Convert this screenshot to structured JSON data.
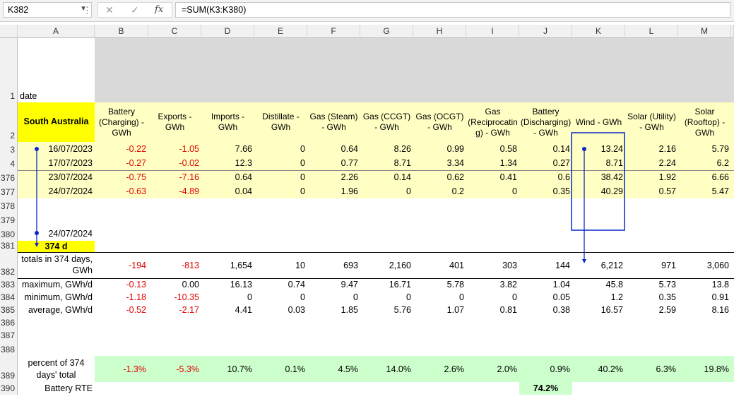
{
  "formula_bar": {
    "name_box": "K382",
    "formula": "=SUM(K3:K380)",
    "cancel_icon": "✕",
    "enter_icon": "✓",
    "fx_label": "fx"
  },
  "columns": [
    "A",
    "B",
    "C",
    "D",
    "E",
    "F",
    "G",
    "H",
    "I",
    "J",
    "K",
    "L",
    "M"
  ],
  "row_numbers": {
    "r1": "1",
    "r2": "2",
    "r3": "3",
    "r4": "4",
    "r376": "376",
    "r377": "377",
    "r378": "378",
    "r379": "379",
    "r380": "380",
    "r381": "381",
    "r382": "382",
    "r383": "383",
    "r384": "384",
    "r385": "385",
    "r386": "386",
    "r387": "387",
    "r388": "388",
    "r389": "389",
    "r390": "390"
  },
  "row1": {
    "a": "date"
  },
  "row2": {
    "a": "South Australia",
    "headers": [
      "Battery (Charging) - GWh",
      "Exports - GWh",
      "Imports - GWh",
      "Distillate - GWh",
      "Gas (Steam) - GWh",
      "Gas (CCGT) - GWh",
      "Gas (OCGT) - GWh",
      "Gas (Reciprocatin g) - GWh",
      "Battery (Discharging) - GWh",
      "Wind - GWh",
      "Solar (Utility) - GWh",
      "Solar (Rooftop) - GWh"
    ]
  },
  "data_rows": [
    {
      "date": "16/07/2023",
      "v": [
        "-0.22",
        "-1.05",
        "7.66",
        "0",
        "0.64",
        "8.26",
        "0.99",
        "0.58",
        "0.14",
        "13.24",
        "2.16",
        "5.79"
      ]
    },
    {
      "date": "17/07/2023",
      "v": [
        "-0.27",
        "-0.02",
        "12.3",
        "0",
        "0.77",
        "8.71",
        "3.34",
        "1.34",
        "0.27",
        "8.71",
        "2.24",
        "6.2"
      ]
    },
    {
      "date": "23/07/2024",
      "v": [
        "-0.75",
        "-7.16",
        "0.64",
        "0",
        "2.26",
        "0.14",
        "0.62",
        "0.41",
        "0.6",
        "38.42",
        "1.92",
        "6.66"
      ]
    },
    {
      "date": "24/07/2024",
      "v": [
        "-0.63",
        "-4.89",
        "0.04",
        "0",
        "1.96",
        "0",
        "0.2",
        "0",
        "0.35",
        "40.29",
        "0.57",
        "5.47"
      ]
    }
  ],
  "row380": {
    "a": "24/07/2024"
  },
  "row381": {
    "a": "374 d"
  },
  "totals": {
    "label": "totals in 374 days, GWh",
    "v": [
      "-194",
      "-813",
      "1,654",
      "10",
      "693",
      "2,160",
      "401",
      "303",
      "144",
      "6,212",
      "971",
      "3,060"
    ]
  },
  "maximum": {
    "label": "maximum, GWh/d",
    "v": [
      "-0.13",
      "0.00",
      "16.13",
      "0.74",
      "9.47",
      "16.71",
      "5.78",
      "3.82",
      "1.04",
      "45.8",
      "5.73",
      "13.8"
    ]
  },
  "minimum": {
    "label": "minimum, GWh/d",
    "v": [
      "-1.18",
      "-10.35",
      "0",
      "0",
      "0",
      "0",
      "0",
      "0",
      "0.05",
      "1.2",
      "0.35",
      "0.91"
    ]
  },
  "average": {
    "label": "average, GWh/d",
    "v": [
      "-0.52",
      "-2.17",
      "4.41",
      "0.03",
      "1.85",
      "5.76",
      "1.07",
      "0.81",
      "0.38",
      "16.57",
      "2.59",
      "8.16"
    ]
  },
  "percent": {
    "label": "percent of 374 days' total",
    "v": [
      "-1.3%",
      "-5.3%",
      "10.7%",
      "0.1%",
      "4.5%",
      "14.0%",
      "2.6%",
      "2.0%",
      "0.9%",
      "40.2%",
      "6.3%",
      "19.8%"
    ]
  },
  "rte": {
    "label": "Battery RTE",
    "value": "74.2%"
  },
  "colors": {
    "negative": "#e00000",
    "header_yellow": "#ffffc4",
    "bright_yellow": "#ffff00",
    "green": "#ccffcc",
    "annotation_blue": "#0a28c8"
  }
}
